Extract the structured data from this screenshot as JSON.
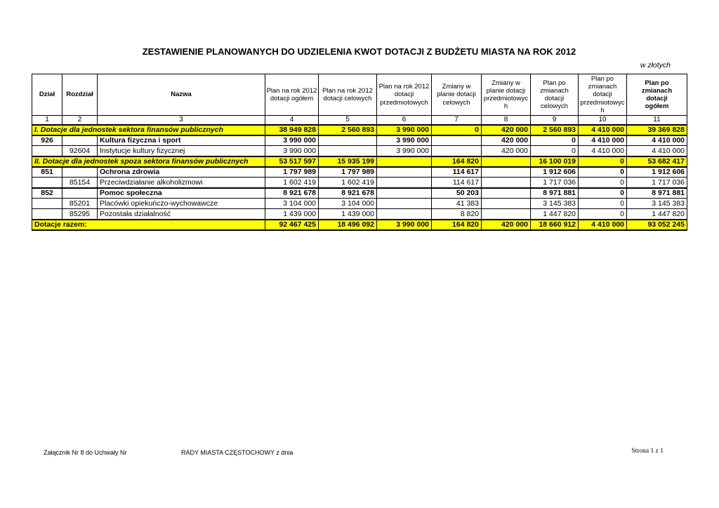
{
  "page": {
    "title": "ZESTAWIENIE PLANOWANYCH DO UDZIELENIA KWOT DOTACJI Z BUDŻETU MIASTA NA ROK 2012",
    "currency_note": "w złotych"
  },
  "colors": {
    "highlight": "#ffff00",
    "border": "#000000"
  },
  "table": {
    "columns": [
      {
        "num": "1",
        "label": "Dział",
        "bold": true
      },
      {
        "num": "2",
        "label": "Rozdział",
        "bold": true
      },
      {
        "num": "3",
        "label": "Nazwa",
        "bold": true
      },
      {
        "num": "4",
        "label": "Plan na rok 2012\ndotacji ogółem",
        "bold": false
      },
      {
        "num": "5",
        "label": "Plan na rok 2012\ndotacji celowych",
        "bold": false
      },
      {
        "num": "6",
        "label": "Plan na rok 2012\ndotacji\nprzedmiotowych",
        "bold": false
      },
      {
        "num": "7",
        "label": "Zmiany w\nplanie dotacji\ncelowych",
        "bold": false
      },
      {
        "num": "8",
        "label": "Zmiany w\nplanie dotacji\nprzedmiotowyc\nh",
        "bold": false
      },
      {
        "num": "9",
        "label": "Plan po\nzmianach\ndotacji\ncelowych",
        "bold": false
      },
      {
        "num": "10",
        "label": "Plan po\nzmianach\ndotacji\nprzedmiotowyc\nh",
        "bold": false
      },
      {
        "num": "11",
        "label": "Plan po\nzmianach\ndotacji\nogółem",
        "bold": true
      }
    ],
    "rows": [
      {
        "type": "section",
        "label": "I. Dotacje dla jednostek sektora finansów publicznych",
        "values": [
          "38 949 828",
          "2 560 893",
          "3 990 000",
          "0",
          "420 000",
          "2 560 893",
          "4 410 000",
          "39 369 828"
        ]
      },
      {
        "type": "group",
        "dzial": "926",
        "rozdzial": "",
        "name": "Kultura fizyczna i sport",
        "values": [
          "3 990 000",
          "",
          "3 990 000",
          "",
          "420 000",
          "0",
          "4 410 000",
          "4 410 000"
        ]
      },
      {
        "type": "detail",
        "dzial": "",
        "rozdzial": "92604",
        "name": "Instytucje kultury fizycznej",
        "values": [
          "3 990 000",
          "",
          "3 990 000",
          "",
          "420 000",
          "0",
          "4 410 000",
          "4 410 000"
        ]
      },
      {
        "type": "section",
        "label": "II. Dotacje dla jednostek spoza sektora finansów publicznych",
        "values": [
          "53 517 597",
          "15 935 199",
          "",
          "164 820",
          "",
          "16 100 019",
          "0",
          "53 682 417"
        ]
      },
      {
        "type": "group",
        "dzial": "851",
        "rozdzial": "",
        "name": "Ochrona zdrowia",
        "values": [
          "1 797 989",
          "1 797 989",
          "",
          "114 617",
          "",
          "1 912 606",
          "0",
          "1 912 606"
        ]
      },
      {
        "type": "detail",
        "dzial": "",
        "rozdzial": "85154",
        "name": "Przeciwdziałanie alkoholizmowi",
        "values": [
          "1 602 419",
          "1 602 419",
          "",
          "114 617",
          "",
          "1 717 036",
          "0",
          "1 717 036"
        ]
      },
      {
        "type": "group",
        "dzial": "852",
        "rozdzial": "",
        "name": "Pomoc społeczna",
        "values": [
          "8 921 678",
          "8 921 678",
          "",
          "50 203",
          "",
          "8 971 881",
          "0",
          "8 971 881"
        ]
      },
      {
        "type": "detail",
        "dzial": "",
        "rozdzial": "85201",
        "name": "Placówki opiekuńczo-wychowawcze",
        "values": [
          "3 104 000",
          "3 104 000",
          "",
          "41 383",
          "",
          "3 145 383",
          "0",
          "3 145 383"
        ]
      },
      {
        "type": "detail",
        "dzial": "",
        "rozdzial": "85295",
        "name": "Pozostała działalność",
        "values": [
          "1 439 000",
          "1 439 000",
          "",
          "8 820",
          "",
          "1 447 820",
          "0",
          "1 447 820"
        ]
      },
      {
        "type": "total",
        "label": "Dotacje razem:",
        "values": [
          "92 467 425",
          "18 496 092",
          "3 990 000",
          "164 820",
          "420 000",
          "18 660 912",
          "4 410 000",
          "93 052 245"
        ]
      }
    ]
  },
  "footer": {
    "attachment_label": "Załącznik Nr 8 do Uchwały Nr",
    "council_label": "RADY MIASTA CZĘSTOCHOWY z dnia",
    "page_label": "Strona 1 z 1"
  }
}
